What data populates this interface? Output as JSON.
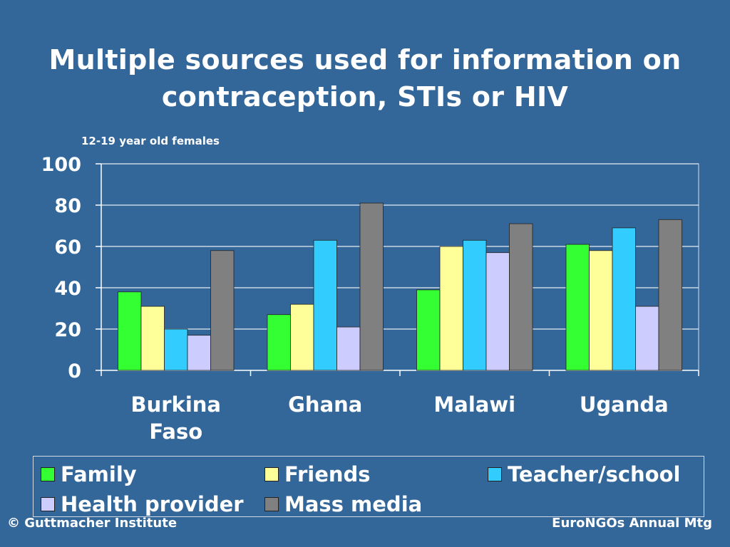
{
  "title_line1": "Multiple sources used for information on",
  "title_line2": "contraception, STIs or HIV",
  "subtitle": "12-19 year old females",
  "footer_left": "© Guttmacher Institute",
  "footer_right": "EuroNGOs Annual Mtg",
  "chart_data": {
    "type": "bar",
    "categories": [
      [
        "Burkina",
        "Faso"
      ],
      [
        "Ghana"
      ],
      [
        "Malawi"
      ],
      [
        "Uganda"
      ]
    ],
    "series": [
      {
        "name": "Family",
        "color": "#33ff33",
        "values": [
          38,
          27,
          39,
          61
        ]
      },
      {
        "name": "Friends",
        "color": "#ffff99",
        "values": [
          31,
          32,
          60,
          58
        ]
      },
      {
        "name": "Teacher/school",
        "color": "#33ccff",
        "values": [
          20,
          63,
          63,
          69
        ]
      },
      {
        "name": "Health provider",
        "color": "#ccccff",
        "values": [
          17,
          21,
          57,
          31
        ]
      },
      {
        "name": "Mass media",
        "color": "#808080",
        "values": [
          58,
          81,
          71,
          73
        ]
      }
    ],
    "ylim": [
      0,
      100
    ],
    "yticks": [
      0,
      20,
      40,
      60,
      80,
      100
    ],
    "grid": true,
    "legend_position": "bottom"
  }
}
